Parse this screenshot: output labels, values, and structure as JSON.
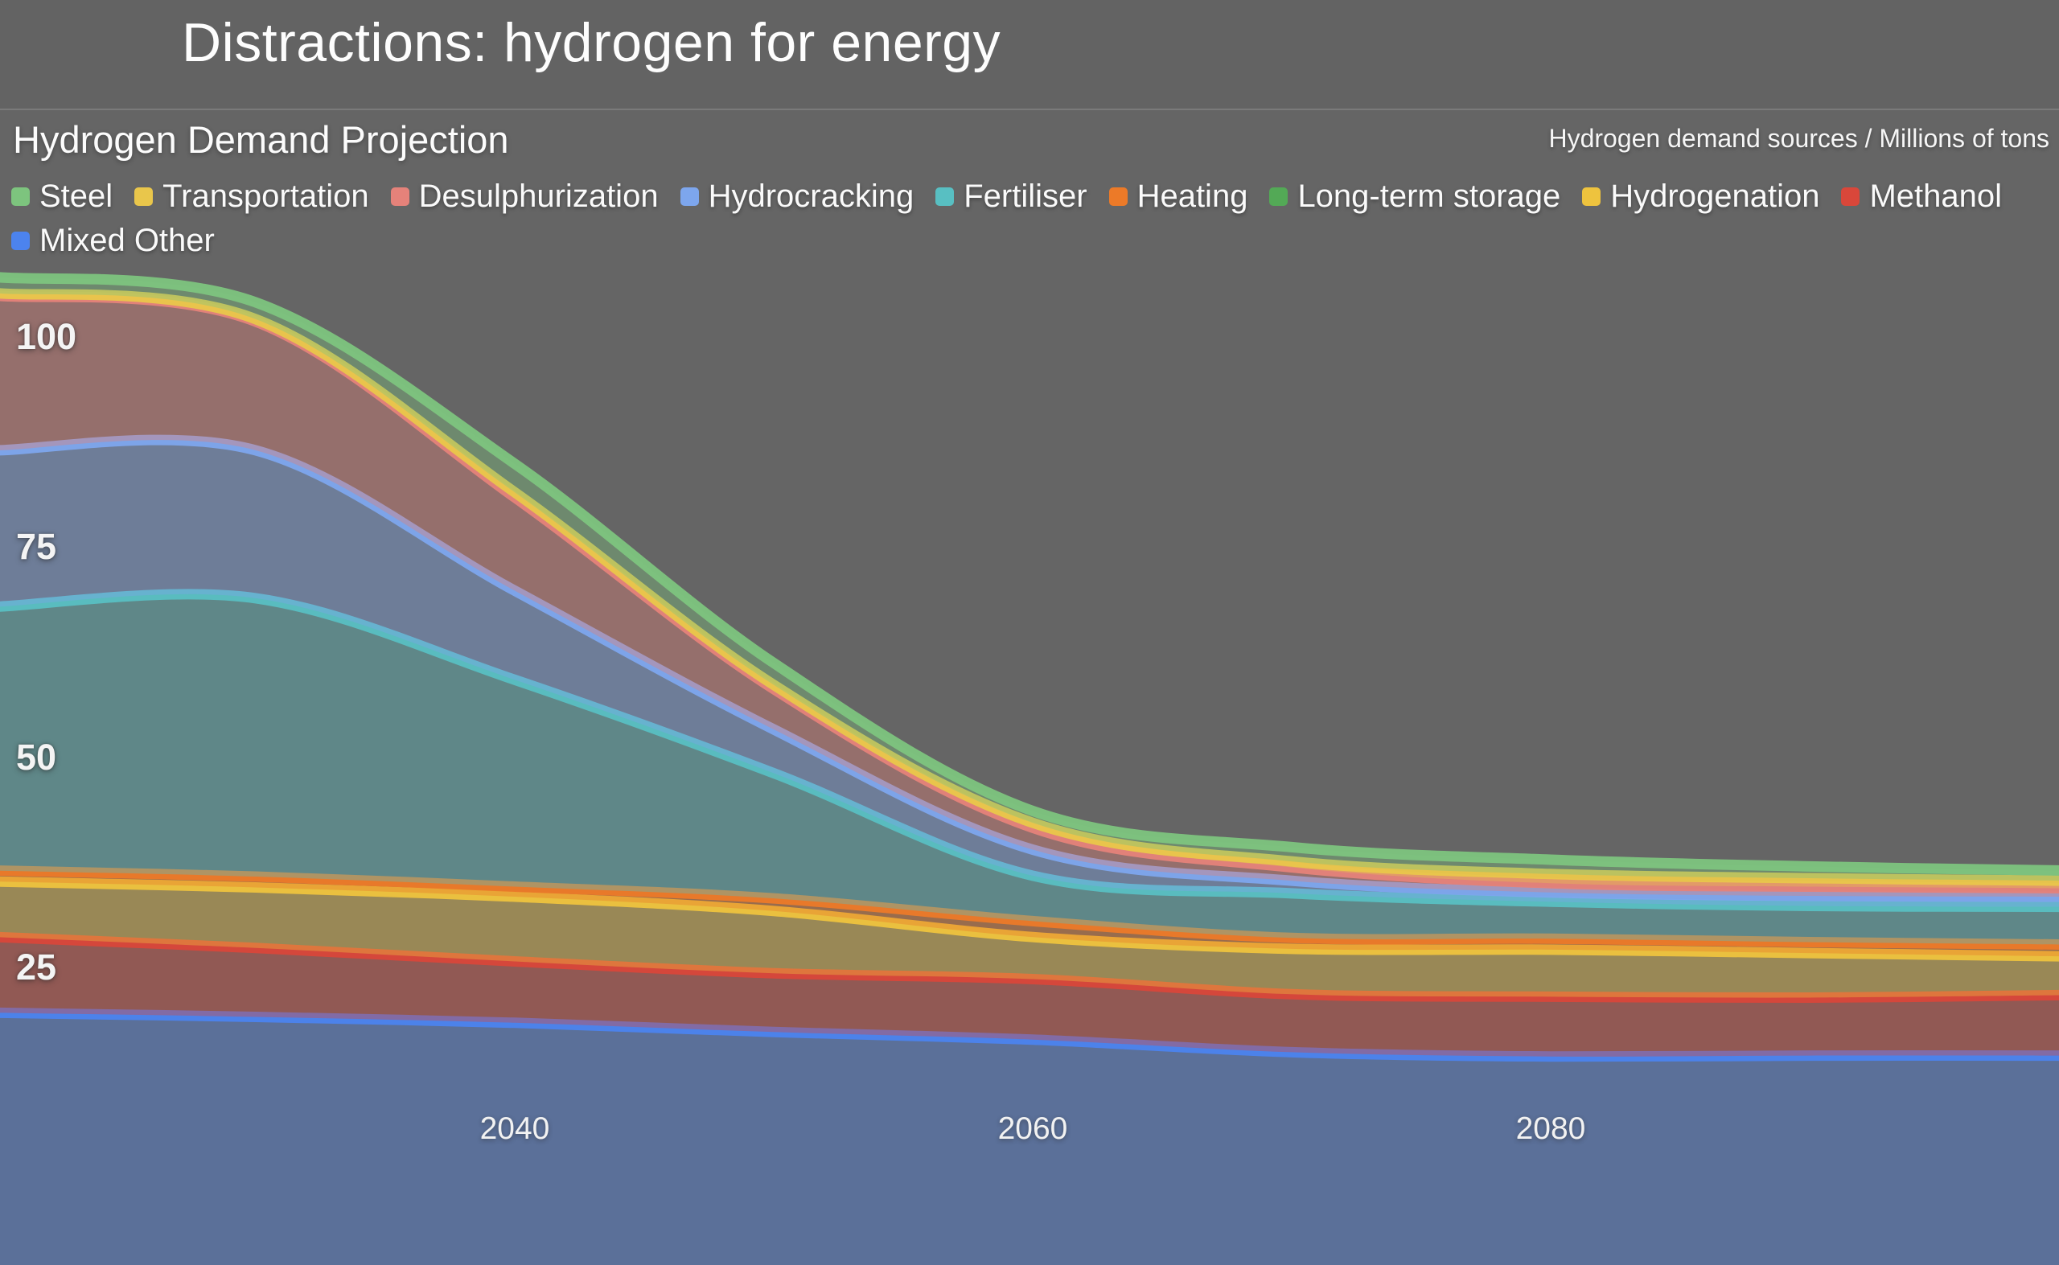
{
  "slide": {
    "title": "Distractions: hydrogen for energy"
  },
  "chart": {
    "title": "Hydrogen Demand Projection",
    "caption": "Hydrogen demand sources / Millions of tons",
    "background": "#656565",
    "titlebar_background": "#636363"
  },
  "chart_data": {
    "type": "area",
    "stacked": true,
    "title": "Hydrogen Demand Projection",
    "units_label": "Hydrogen demand sources / Millions of tons",
    "x": [
      2020,
      2030,
      2040,
      2050,
      2060,
      2070,
      2080,
      2090,
      2100
    ],
    "x_ticks": [
      "2040",
      "2060",
      "2080"
    ],
    "y_ticks": [
      "25",
      "50",
      "75",
      "100"
    ],
    "x_range": [
      2020,
      2100
    ],
    "y_range": [
      0,
      108
    ],
    "grid": false,
    "legend_position": "top",
    "stack_order": "last series at bottom (reverse of legend order)",
    "series": [
      {
        "name": "Steel",
        "color": "#7dc47e",
        "values": [
          1.9,
          2.0,
          3.4,
          2.6,
          1.4,
          1.7,
          1.7,
          1.4,
          1.2
        ]
      },
      {
        "name": "Transportation",
        "color": "#e9c64b",
        "values": [
          0.3,
          0.3,
          0.6,
          0.5,
          0.6,
          0.7,
          1.1,
          1.0,
          0.9
        ]
      },
      {
        "name": "Desulphurization",
        "color": "#e5827a",
        "values": [
          18.4,
          15.3,
          11.1,
          4.8,
          2.6,
          1.6,
          1.1,
          1.1,
          1.0
        ]
      },
      {
        "name": "Hydrocracking",
        "color": "#7da6ed",
        "values": [
          18.6,
          17.6,
          10.6,
          5.2,
          3.1,
          1.5,
          1.1,
          1.2,
          1.2
        ]
      },
      {
        "name": "Fertiliser",
        "color": "#58bfc2",
        "values": [
          31.4,
          33.1,
          24.6,
          14.9,
          5.4,
          5.3,
          4.4,
          4.3,
          4.5
        ]
      },
      {
        "name": "Heating",
        "color": "#ec7a28",
        "values": [
          1.3,
          1.3,
          1.2,
          1.5,
          1.9,
          1.3,
          1.3,
          1.3,
          1.4
        ]
      },
      {
        "name": "Long-term storage",
        "color": "#53a956",
        "values": [
          0,
          0,
          0,
          0,
          0,
          0,
          0,
          0,
          0
        ]
      },
      {
        "name": "Hydrogenation",
        "color": "#eec33e",
        "values": [
          6.6,
          7.2,
          7.7,
          7.4,
          5.0,
          5.4,
          5.6,
          5.3,
          4.6
        ]
      },
      {
        "name": "Methanol",
        "color": "#d9473a",
        "values": [
          9.0,
          8.2,
          7.3,
          7.0,
          7.2,
          6.9,
          7.1,
          6.9,
          7.2
        ]
      },
      {
        "name": "Mixed Other",
        "color": "#4c83ee",
        "values": [
          33.1,
          32.6,
          31.9,
          30.8,
          29.9,
          28.4,
          27.9,
          28.0,
          28.0
        ]
      }
    ]
  }
}
